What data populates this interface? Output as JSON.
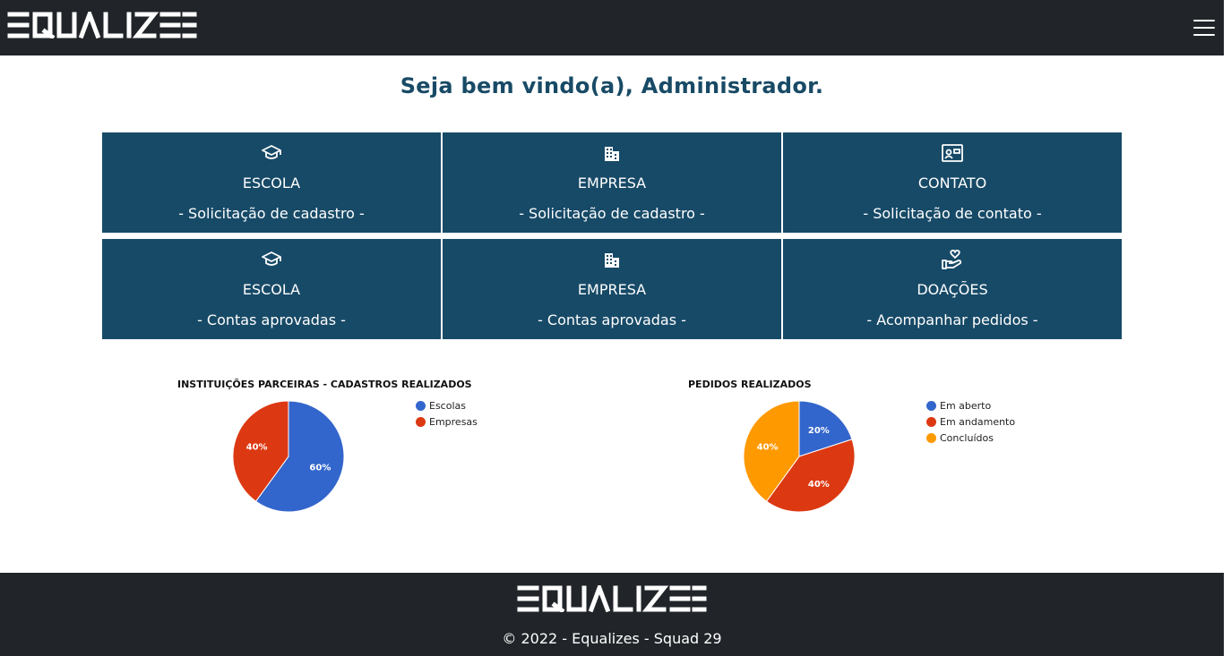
{
  "header": {
    "logo": "ƎQUALIZƎS",
    "menu_icon": "hamburger-icon"
  },
  "welcome": "Seja bem vindo(a), Administrador.",
  "cards": [
    {
      "icon": "graduation-cap-icon",
      "title": "ESCOLA",
      "subtitle": "- Solicitação de cadastro -"
    },
    {
      "icon": "building-icon",
      "title": "EMPRESA",
      "subtitle": "- Solicitação de cadastro -"
    },
    {
      "icon": "contact-card-icon",
      "title": "CONTATO",
      "subtitle": "- Solicitação de contato -"
    },
    {
      "icon": "graduation-cap-icon",
      "title": "ESCOLA",
      "subtitle": "- Contas aprovadas -"
    },
    {
      "icon": "building-icon",
      "title": "EMPRESA",
      "subtitle": "- Contas aprovadas -"
    },
    {
      "icon": "hand-heart-icon",
      "title": "DOAÇÕES",
      "subtitle": "- Acompanhar pedidos -"
    }
  ],
  "chart_data": [
    {
      "type": "pie",
      "title": "INSTITUIÇÕES PARCEIRAS - CADASTROS REALIZADOS",
      "categories": [
        "Escolas",
        "Empresas"
      ],
      "values": [
        60,
        40
      ],
      "labels": [
        "60%",
        "40%"
      ],
      "colors": [
        "#3366cc",
        "#dc3912"
      ],
      "legend": "right"
    },
    {
      "type": "pie",
      "title": "PEDIDOS REALIZADOS",
      "categories": [
        "Em aberto",
        "Em andamento",
        "Concluídos"
      ],
      "values": [
        20,
        40,
        40
      ],
      "labels": [
        "20%",
        "40%",
        "40%"
      ],
      "colors": [
        "#3366cc",
        "#dc3912",
        "#ff9900"
      ],
      "legend": "right"
    }
  ],
  "footer": {
    "logo": "ƎQUALIZƎS",
    "copyright": "© 2022 - Equalizes - Squad 29"
  }
}
